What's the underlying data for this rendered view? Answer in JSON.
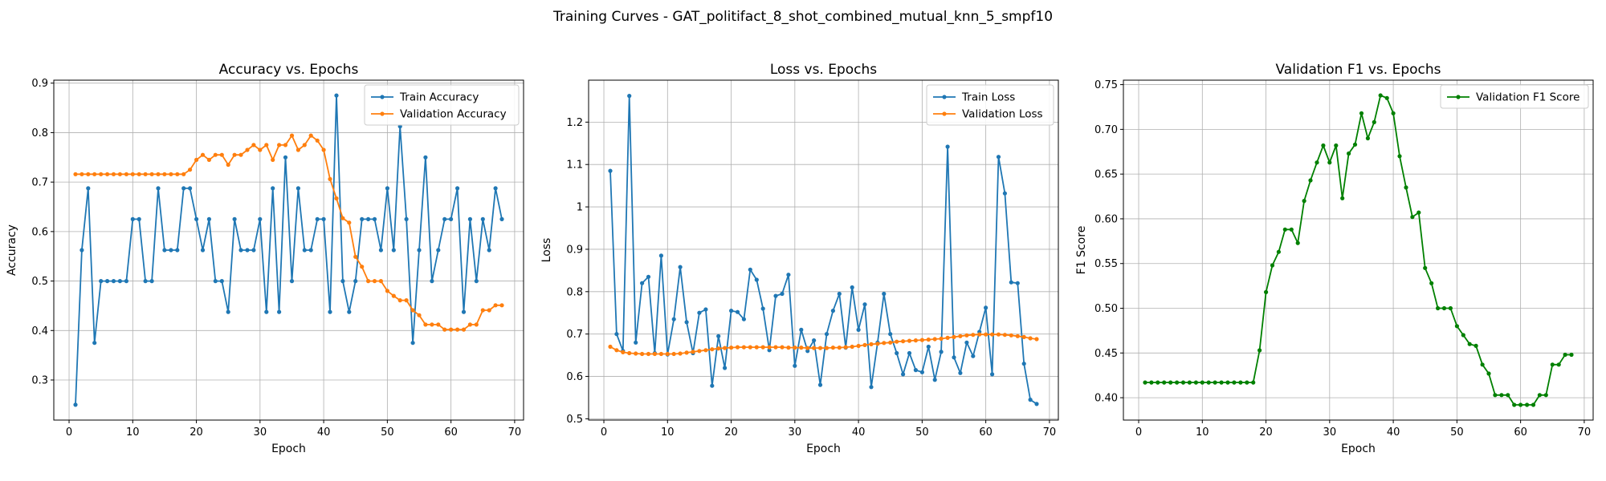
{
  "figure": {
    "suptitle": "Training Curves - GAT_politifact_8_shot_combined_mutual_knn_5_smpf10"
  },
  "chart_data": [
    {
      "type": "line",
      "title": "Accuracy vs. Epochs",
      "xlabel": "Epoch",
      "ylabel": "Accuracy",
      "xlim": [
        -2.4,
        71.4
      ],
      "ylim": [
        0.219,
        0.906
      ],
      "xticks": [
        0,
        10,
        20,
        30,
        40,
        50,
        60,
        70
      ],
      "yticks": [
        0.3,
        0.4,
        0.5,
        0.6,
        0.7,
        0.8,
        0.9
      ],
      "grid": true,
      "legend": "top-right",
      "x": [
        1,
        2,
        3,
        4,
        5,
        6,
        7,
        8,
        9,
        10,
        11,
        12,
        13,
        14,
        15,
        16,
        17,
        18,
        19,
        20,
        21,
        22,
        23,
        24,
        25,
        26,
        27,
        28,
        29,
        30,
        31,
        32,
        33,
        34,
        35,
        36,
        37,
        38,
        39,
        40,
        41,
        42,
        43,
        44,
        45,
        46,
        47,
        48,
        49,
        50,
        51,
        52,
        53,
        54,
        55,
        56,
        57,
        58,
        59,
        60,
        61,
        62,
        63,
        64,
        65,
        66,
        67,
        68
      ],
      "series": [
        {
          "name": "Train Accuracy",
          "color": "#1f77b4",
          "values": [
            0.25,
            0.5625,
            0.6875,
            0.375,
            0.5,
            0.5,
            0.5,
            0.5,
            0.5,
            0.625,
            0.625,
            0.5,
            0.5,
            0.6875,
            0.5625,
            0.5625,
            0.5625,
            0.6875,
            0.6875,
            0.625,
            0.5625,
            0.625,
            0.5,
            0.5,
            0.4375,
            0.625,
            0.5625,
            0.5625,
            0.5625,
            0.625,
            0.4375,
            0.6875,
            0.4375,
            0.75,
            0.5,
            0.6875,
            0.5625,
            0.5625,
            0.625,
            0.625,
            0.4375,
            0.875,
            0.5,
            0.4375,
            0.5,
            0.625,
            0.625,
            0.625,
            0.5625,
            0.6875,
            0.5625,
            0.8125,
            0.625,
            0.375,
            0.5625,
            0.75,
            0.5,
            0.5625,
            0.625,
            0.625,
            0.6875,
            0.4375,
            0.625,
            0.5,
            0.625,
            0.5625,
            0.6875,
            0.625
          ]
        },
        {
          "name": "Validation Accuracy",
          "color": "#ff7f0e",
          "values": [
            0.716,
            0.716,
            0.716,
            0.716,
            0.716,
            0.716,
            0.716,
            0.716,
            0.716,
            0.716,
            0.716,
            0.716,
            0.716,
            0.716,
            0.716,
            0.716,
            0.716,
            0.716,
            0.725,
            0.745,
            0.755,
            0.745,
            0.755,
            0.755,
            0.735,
            0.755,
            0.755,
            0.765,
            0.775,
            0.765,
            0.775,
            0.745,
            0.775,
            0.775,
            0.794,
            0.765,
            0.775,
            0.794,
            0.784,
            0.765,
            0.706,
            0.667,
            0.627,
            0.618,
            0.549,
            0.529,
            0.5,
            0.5,
            0.5,
            0.48,
            0.47,
            0.461,
            0.461,
            0.441,
            0.431,
            0.412,
            0.412,
            0.412,
            0.402,
            0.402,
            0.402,
            0.402,
            0.412,
            0.412,
            0.441,
            0.441,
            0.451,
            0.451
          ]
        }
      ]
    },
    {
      "type": "line",
      "title": "Loss vs. Epochs",
      "xlabel": "Epoch",
      "ylabel": "Loss",
      "xlim": [
        -2.4,
        71.4
      ],
      "ylim": [
        0.497,
        1.299
      ],
      "xticks": [
        0,
        10,
        20,
        30,
        40,
        50,
        60,
        70
      ],
      "yticks": [
        0.5,
        0.6,
        0.7,
        0.8,
        0.9,
        1.0,
        1.1,
        1.2
      ],
      "grid": true,
      "legend": "top-right",
      "x": [
        1,
        2,
        3,
        4,
        5,
        6,
        7,
        8,
        9,
        10,
        11,
        12,
        13,
        14,
        15,
        16,
        17,
        18,
        19,
        20,
        21,
        22,
        23,
        24,
        25,
        26,
        27,
        28,
        29,
        30,
        31,
        32,
        33,
        34,
        35,
        36,
        37,
        38,
        39,
        40,
        41,
        42,
        43,
        44,
        45,
        46,
        47,
        48,
        49,
        50,
        51,
        52,
        53,
        54,
        55,
        56,
        57,
        58,
        59,
        60,
        61,
        62,
        63,
        64,
        65,
        66,
        67,
        68
      ],
      "series": [
        {
          "name": "Train Loss",
          "color": "#1f77b4",
          "values": [
            1.085,
            0.7,
            0.66,
            1.262,
            0.68,
            0.82,
            0.835,
            0.655,
            0.885,
            0.652,
            0.735,
            0.858,
            0.728,
            0.655,
            0.75,
            0.758,
            0.578,
            0.695,
            0.62,
            0.755,
            0.752,
            0.735,
            0.852,
            0.828,
            0.76,
            0.662,
            0.79,
            0.795,
            0.84,
            0.625,
            0.71,
            0.66,
            0.685,
            0.58,
            0.7,
            0.755,
            0.795,
            0.668,
            0.81,
            0.71,
            0.77,
            0.575,
            0.68,
            0.795,
            0.7,
            0.655,
            0.605,
            0.655,
            0.615,
            0.61,
            0.67,
            0.592,
            0.658,
            1.142,
            0.645,
            0.608,
            0.68,
            0.648,
            0.705,
            0.762,
            0.605,
            1.118,
            1.032,
            0.822,
            0.82,
            0.63,
            0.545,
            0.535
          ]
        },
        {
          "name": "Validation Loss",
          "color": "#ff7f0e",
          "values": [
            0.67,
            0.662,
            0.657,
            0.655,
            0.654,
            0.653,
            0.653,
            0.653,
            0.653,
            0.653,
            0.653,
            0.654,
            0.656,
            0.658,
            0.66,
            0.662,
            0.664,
            0.666,
            0.667,
            0.668,
            0.669,
            0.669,
            0.669,
            0.669,
            0.669,
            0.669,
            0.669,
            0.669,
            0.668,
            0.668,
            0.668,
            0.667,
            0.667,
            0.667,
            0.667,
            0.668,
            0.668,
            0.669,
            0.67,
            0.672,
            0.674,
            0.676,
            0.677,
            0.679,
            0.68,
            0.682,
            0.683,
            0.684,
            0.685,
            0.686,
            0.687,
            0.688,
            0.689,
            0.691,
            0.693,
            0.695,
            0.697,
            0.698,
            0.699,
            0.699,
            0.699,
            0.699,
            0.698,
            0.697,
            0.695,
            0.693,
            0.69,
            0.688
          ]
        }
      ]
    },
    {
      "type": "line",
      "title": "Validation F1 vs. Epochs",
      "xlabel": "Epoch",
      "ylabel": "F1 Score",
      "xlim": [
        -2.4,
        71.4
      ],
      "ylim": [
        0.375,
        0.755
      ],
      "xticks": [
        0,
        10,
        20,
        30,
        40,
        50,
        60,
        70
      ],
      "yticks": [
        0.4,
        0.45,
        0.5,
        0.55,
        0.6,
        0.65,
        0.7,
        0.75
      ],
      "ytick_labels": [
        "0.40",
        "0.45",
        "0.50",
        "0.55",
        "0.60",
        "0.65",
        "0.70",
        "0.75"
      ],
      "grid": true,
      "legend": "top-right",
      "x": [
        1,
        2,
        3,
        4,
        5,
        6,
        7,
        8,
        9,
        10,
        11,
        12,
        13,
        14,
        15,
        16,
        17,
        18,
        19,
        20,
        21,
        22,
        23,
        24,
        25,
        26,
        27,
        28,
        29,
        30,
        31,
        32,
        33,
        34,
        35,
        36,
        37,
        38,
        39,
        40,
        41,
        42,
        43,
        44,
        45,
        46,
        47,
        48,
        49,
        50,
        51,
        52,
        53,
        54,
        55,
        56,
        57,
        58,
        59,
        60,
        61,
        62,
        63,
        64,
        65,
        66,
        67,
        68
      ],
      "series": [
        {
          "name": "Validation F1 Score",
          "color": "#008000",
          "values": [
            0.417,
            0.417,
            0.417,
            0.417,
            0.417,
            0.417,
            0.417,
            0.417,
            0.417,
            0.417,
            0.417,
            0.417,
            0.417,
            0.417,
            0.417,
            0.417,
            0.417,
            0.417,
            0.453,
            0.518,
            0.548,
            0.563,
            0.588,
            0.588,
            0.573,
            0.62,
            0.643,
            0.663,
            0.682,
            0.663,
            0.682,
            0.623,
            0.673,
            0.683,
            0.718,
            0.69,
            0.708,
            0.738,
            0.735,
            0.718,
            0.67,
            0.635,
            0.602,
            0.607,
            0.545,
            0.528,
            0.5,
            0.5,
            0.5,
            0.48,
            0.47,
            0.46,
            0.458,
            0.437,
            0.427,
            0.403,
            0.403,
            0.403,
            0.392,
            0.392,
            0.392,
            0.392,
            0.403,
            0.403,
            0.437,
            0.437,
            0.448,
            0.448
          ]
        }
      ]
    }
  ]
}
